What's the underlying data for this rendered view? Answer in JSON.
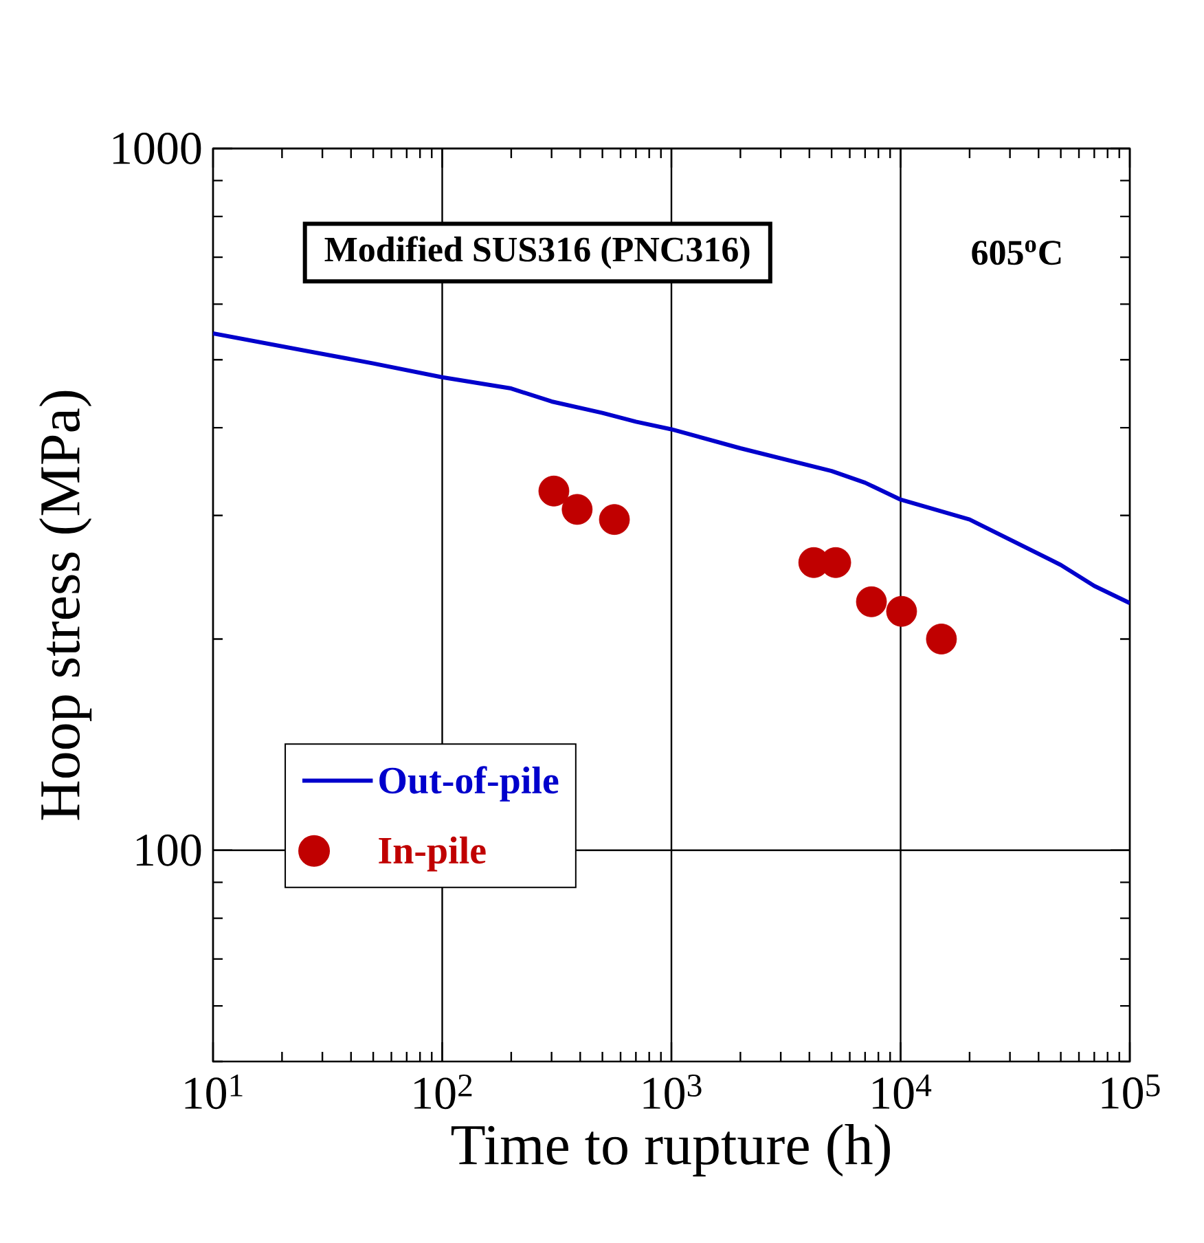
{
  "chart_data": {
    "type": "line",
    "xlabel": "Time to rupture (h)",
    "ylabel": "Hoop stress (MPa)",
    "annotations": [
      "Modified SUS316 (PNC316)",
      "605$^{o}$C"
    ],
    "series": [
      {
        "name": "Out-of-pile",
        "type": "line",
        "color": "#0000cc",
        "marker": "none",
        "line_style": "solid",
        "x": [
          10,
          50,
          100,
          200,
          300,
          500,
          700,
          1000,
          2000,
          5000,
          7000,
          10000,
          20000,
          50000,
          70000,
          100000
        ],
        "values": [
          545,
          494,
          472,
          455,
          436,
          420,
          408,
          398,
          374,
          347,
          334,
          316,
          296,
          255,
          238,
          225
        ]
      },
      {
        "name": "In-pile",
        "type": "scatter",
        "color": "#c00000",
        "marker": "circle",
        "x": [
          307,
          388,
          564,
          4180,
          5210,
          7460,
          10100,
          15070
        ],
        "values": [
          325,
          306,
          296,
          257,
          257,
          226,
          219,
          200
        ]
      }
    ],
    "log": "xy",
    "xlim": [
      10,
      100000
    ],
    "ylim": [
      50,
      1000
    ],
    "xticks": [
      {
        "value": 10,
        "label": "10$^{1}$"
      },
      {
        "value": 100,
        "label": "10$^{2}$"
      },
      {
        "value": 1000,
        "label": "10$^{3}$"
      },
      {
        "value": 10000,
        "label": "10$^{4}$"
      },
      {
        "value": 100000,
        "label": "10$^{5}$"
      }
    ],
    "yticks": [
      100,
      1000
    ],
    "grid": true,
    "legend": "bottom left"
  }
}
